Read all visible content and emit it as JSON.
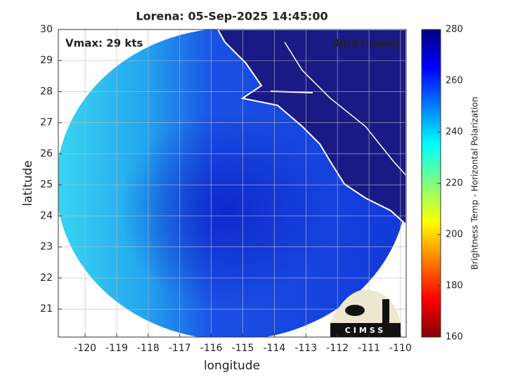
{
  "chart_data": {
    "type": "map",
    "title": "Lorena: 05-Sep-2025 14:45:00",
    "x_label": "longitude",
    "y_label": "latitude",
    "xlim": [
      -120.85,
      -109.82
    ],
    "ylim": [
      20.1,
      30
    ],
    "xticks": [
      -120,
      -119,
      -118,
      -117,
      -116,
      -115,
      -114,
      -113,
      -112,
      -111,
      -110
    ],
    "yticks": [
      21,
      22,
      23,
      24,
      25,
      26,
      27,
      28,
      29,
      30
    ],
    "grid": true,
    "annotations": [
      "Vmax: 29 kts",
      "00:57 away"
    ],
    "colorbar": {
      "label": "Brightness Temp - Horizontal Polarization",
      "lim": [
        160,
        280
      ],
      "ticks": [
        160,
        180,
        200,
        220,
        240,
        260,
        280
      ],
      "colormap": "jet"
    },
    "logo": "CIMSS"
  }
}
